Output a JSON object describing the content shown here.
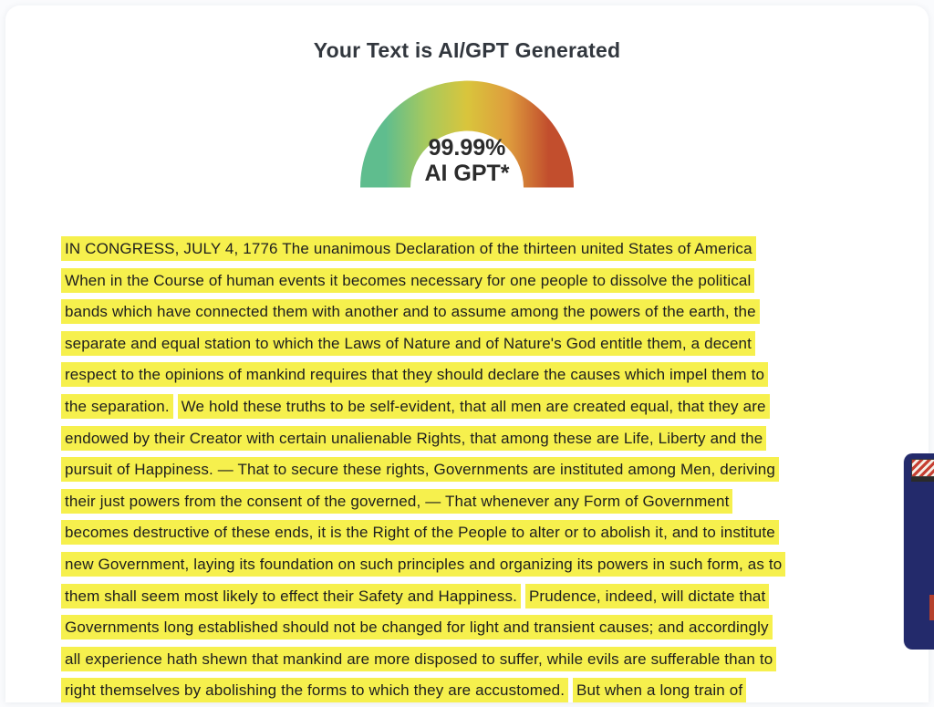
{
  "result": {
    "title": "Your Text is AI/GPT Generated",
    "gauge": {
      "percentage": "99.99%",
      "label": "AI GPT*",
      "colors": [
        "#5fbd8e",
        "#a6c95e",
        "#d9c53c",
        "#de9d3d",
        "#c24e2d"
      ]
    }
  },
  "transcript": {
    "highlight_color": "#f6f04d",
    "lines": [
      [
        "IN CONGRESS, JULY 4, 1776 The unanimous Declaration of the thirteen united States of America"
      ],
      [
        "When in the Course of human events it becomes necessary for one people to dissolve the political"
      ],
      [
        "bands which have connected them with another and to assume among the powers of the earth, the"
      ],
      [
        "separate and equal station to which the Laws of Nature and of Nature's God entitle them, a decent"
      ],
      [
        "respect to the opinions of mankind requires that they should declare the causes which impel them to"
      ],
      [
        "the separation.",
        "We hold these truths to be self-evident, that all men are created equal, that they are"
      ],
      [
        "endowed by their Creator with certain unalienable Rights, that among these are Life, Liberty and the"
      ],
      [
        "pursuit of Happiness. — That to secure these rights, Governments are instituted among Men, deriving"
      ],
      [
        "their just powers from the consent of the governed, — That whenever any Form of Government"
      ],
      [
        "becomes destructive of these ends, it is the Right of the People to alter or to abolish it, and to institute"
      ],
      [
        "new Government, laying its foundation on such principles and organizing its powers in such form, as to"
      ],
      [
        "them shall seem most likely to effect their Safety and Happiness.",
        "Prudence, indeed, will dictate that"
      ],
      [
        "Governments long established should not be changed for light and transient causes; and accordingly"
      ],
      [
        "all experience hath shewn that mankind are more disposed to suffer, while evils are sufferable than to"
      ],
      [
        "right themselves by abolishing the forms to which they are accustomed.",
        "But when a long train of"
      ]
    ]
  },
  "ad": {
    "background": "#232a6b",
    "accent": "#b5402c"
  }
}
